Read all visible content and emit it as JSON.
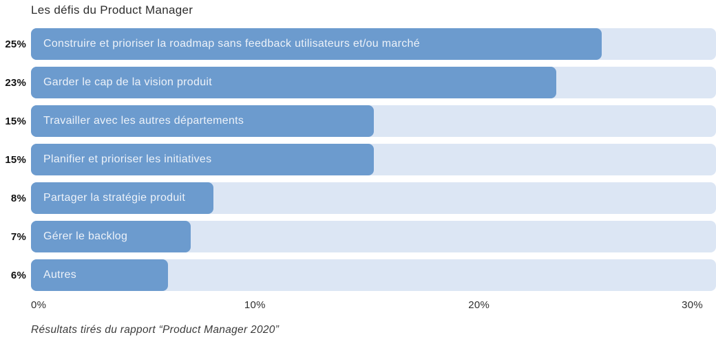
{
  "chart_data": {
    "type": "bar",
    "orientation": "horizontal",
    "title": "Les défis du Product Manager",
    "categories": [
      "Construire et prioriser la roadmap sans feedback utilisateurs et/ou marché",
      "Garder le cap de la vision produit",
      "Travailler avec les autres départements",
      "Planifier et prioriser les initiatives",
      "Partager la stratégie produit",
      "Gérer le backlog",
      "Autres"
    ],
    "values": [
      25,
      23,
      15,
      15,
      8,
      7,
      6
    ],
    "value_labels": [
      "25%",
      "23%",
      "15%",
      "15%",
      "8%",
      "7%",
      "6%"
    ],
    "xlabel": "",
    "ylabel": "",
    "xlim": [
      0,
      30
    ],
    "x_ticks": [
      "0%",
      "10%",
      "20%",
      "30%"
    ],
    "x_tick_values": [
      0,
      10,
      20,
      30
    ],
    "grid": false,
    "legend": "none",
    "colors": {
      "bar_fill": "#6c9bce",
      "bar_track": "#dce6f4",
      "bar_text": "#edf2f9",
      "value_label": "#111111",
      "title": "#2d2d2d",
      "axis_text": "#2f2f2f",
      "footer_text": "#3a3a3a"
    }
  },
  "footer": {
    "text": "Résultats tirés du rapport “Product Manager 2020”"
  }
}
